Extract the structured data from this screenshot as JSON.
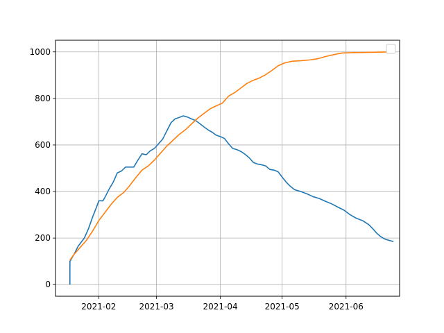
{
  "chart_data": {
    "type": "line",
    "title": "",
    "xlabel": "",
    "ylabel": "",
    "x_ticks": [
      "2021-02",
      "2021-03",
      "2021-04",
      "2021-05",
      "2021-06"
    ],
    "y_ticks": [
      "0",
      "200",
      "400",
      "600",
      "800",
      "1000"
    ],
    "xlim": [
      "2021-01-11",
      "2021-06-27"
    ],
    "ylim": [
      -50,
      1050
    ],
    "grid": true,
    "legend": {
      "placement": "top-right",
      "entries": []
    },
    "series": [
      {
        "color": "#1f77b4",
        "points": [
          [
            "2021-01-18",
            0
          ],
          [
            "2021-01-18",
            100
          ],
          [
            "2021-01-20",
            130
          ],
          [
            "2021-01-22",
            165
          ],
          [
            "2021-01-25",
            200
          ],
          [
            "2021-01-27",
            240
          ],
          [
            "2021-01-29",
            290
          ],
          [
            "2021-01-31",
            335
          ],
          [
            "2021-02-01",
            360
          ],
          [
            "2021-02-03",
            360
          ],
          [
            "2021-02-04",
            375
          ],
          [
            "2021-02-06",
            410
          ],
          [
            "2021-02-08",
            440
          ],
          [
            "2021-02-10",
            480
          ],
          [
            "2021-02-12",
            488
          ],
          [
            "2021-02-14",
            505
          ],
          [
            "2021-02-18",
            505
          ],
          [
            "2021-02-20",
            535
          ],
          [
            "2021-02-22",
            562
          ],
          [
            "2021-02-24",
            558
          ],
          [
            "2021-02-26",
            575
          ],
          [
            "2021-02-28",
            585
          ],
          [
            "2021-03-02",
            605
          ],
          [
            "2021-03-04",
            625
          ],
          [
            "2021-03-06",
            660
          ],
          [
            "2021-03-08",
            695
          ],
          [
            "2021-03-10",
            712
          ],
          [
            "2021-03-12",
            718
          ],
          [
            "2021-03-14",
            725
          ],
          [
            "2021-03-16",
            720
          ],
          [
            "2021-03-18",
            712
          ],
          [
            "2021-03-20",
            705
          ],
          [
            "2021-03-22",
            692
          ],
          [
            "2021-03-24",
            678
          ],
          [
            "2021-03-26",
            665
          ],
          [
            "2021-03-28",
            655
          ],
          [
            "2021-03-30",
            642
          ],
          [
            "2021-04-01",
            636
          ],
          [
            "2021-04-03",
            628
          ],
          [
            "2021-04-05",
            605
          ],
          [
            "2021-04-07",
            585
          ],
          [
            "2021-04-09",
            580
          ],
          [
            "2021-04-11",
            572
          ],
          [
            "2021-04-13",
            560
          ],
          [
            "2021-04-15",
            545
          ],
          [
            "2021-04-17",
            525
          ],
          [
            "2021-04-19",
            518
          ],
          [
            "2021-04-21",
            515
          ],
          [
            "2021-04-23",
            510
          ],
          [
            "2021-04-25",
            495
          ],
          [
            "2021-04-27",
            492
          ],
          [
            "2021-04-29",
            485
          ],
          [
            "2021-05-01",
            462
          ],
          [
            "2021-05-03",
            440
          ],
          [
            "2021-05-05",
            422
          ],
          [
            "2021-05-07",
            408
          ],
          [
            "2021-05-10",
            400
          ],
          [
            "2021-05-13",
            390
          ],
          [
            "2021-05-16",
            378
          ],
          [
            "2021-05-19",
            370
          ],
          [
            "2021-05-22",
            358
          ],
          [
            "2021-05-25",
            347
          ],
          [
            "2021-05-28",
            333
          ],
          [
            "2021-05-31",
            320
          ],
          [
            "2021-06-03",
            300
          ],
          [
            "2021-06-06",
            285
          ],
          [
            "2021-06-09",
            275
          ],
          [
            "2021-06-12",
            258
          ],
          [
            "2021-06-14",
            240
          ],
          [
            "2021-06-16",
            220
          ],
          [
            "2021-06-18",
            205
          ],
          [
            "2021-06-20",
            195
          ],
          [
            "2021-06-22",
            190
          ],
          [
            "2021-06-24",
            185
          ]
        ]
      },
      {
        "color": "#ff7f0e",
        "points": [
          [
            "2021-01-18",
            105
          ],
          [
            "2021-01-20",
            130
          ],
          [
            "2021-01-23",
            160
          ],
          [
            "2021-01-26",
            190
          ],
          [
            "2021-01-29",
            230
          ],
          [
            "2021-02-01",
            275
          ],
          [
            "2021-02-04",
            310
          ],
          [
            "2021-02-07",
            345
          ],
          [
            "2021-02-10",
            375
          ],
          [
            "2021-02-13",
            395
          ],
          [
            "2021-02-16",
            425
          ],
          [
            "2021-02-19",
            460
          ],
          [
            "2021-02-22",
            492
          ],
          [
            "2021-02-25",
            510
          ],
          [
            "2021-02-28",
            535
          ],
          [
            "2021-03-03",
            565
          ],
          [
            "2021-03-06",
            595
          ],
          [
            "2021-03-09",
            620
          ],
          [
            "2021-03-12",
            645
          ],
          [
            "2021-03-15",
            665
          ],
          [
            "2021-03-18",
            690
          ],
          [
            "2021-03-21",
            715
          ],
          [
            "2021-03-24",
            735
          ],
          [
            "2021-03-27",
            755
          ],
          [
            "2021-03-30",
            768
          ],
          [
            "2021-04-02",
            780
          ],
          [
            "2021-04-05",
            810
          ],
          [
            "2021-04-08",
            825
          ],
          [
            "2021-04-11",
            845
          ],
          [
            "2021-04-14",
            865
          ],
          [
            "2021-04-17",
            878
          ],
          [
            "2021-04-20",
            888
          ],
          [
            "2021-04-23",
            902
          ],
          [
            "2021-04-26",
            920
          ],
          [
            "2021-04-29",
            940
          ],
          [
            "2021-05-02",
            952
          ],
          [
            "2021-05-06",
            960
          ],
          [
            "2021-05-10",
            962
          ],
          [
            "2021-05-14",
            965
          ],
          [
            "2021-05-18",
            970
          ],
          [
            "2021-05-22",
            980
          ],
          [
            "2021-05-26",
            988
          ],
          [
            "2021-05-30",
            995
          ],
          [
            "2021-06-05",
            997
          ],
          [
            "2021-06-12",
            998
          ],
          [
            "2021-06-19",
            999
          ],
          [
            "2021-06-24",
            1000
          ]
        ]
      }
    ]
  }
}
